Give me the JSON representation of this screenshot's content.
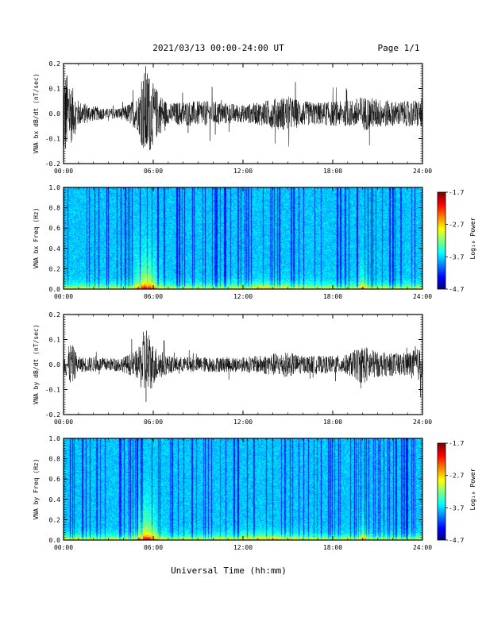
{
  "header": {
    "date_range": "2021/03/13  00:00-24:00 UT",
    "page": "Page 1/1"
  },
  "x_axis": {
    "title": "Universal Time (hh:mm)",
    "ticks": [
      "00:00",
      "06:00",
      "12:00",
      "18:00",
      "24:00"
    ]
  },
  "chart_data": [
    {
      "type": "line",
      "ylabel": "VNA bx dB/dt (nT/sec)",
      "xlim": [
        0,
        24
      ],
      "ylim": [
        -0.2,
        0.2
      ],
      "yticks": [
        "0.2",
        "0.1",
        "0.0",
        "-0.1",
        "-0.2"
      ],
      "envelope": {
        "hours": [
          0,
          0.5,
          1,
          2,
          3,
          4,
          5,
          5.5,
          6,
          7,
          8,
          10,
          12,
          13,
          14,
          15,
          16,
          17,
          18,
          19,
          20,
          21,
          22,
          23,
          24
        ],
        "amplitude": [
          0.2,
          0.12,
          0.05,
          0.03,
          0.02,
          0.025,
          0.07,
          0.2,
          0.12,
          0.04,
          0.05,
          0.05,
          0.035,
          0.045,
          0.06,
          0.07,
          0.05,
          0.045,
          0.05,
          0.05,
          0.07,
          0.06,
          0.05,
          0.05,
          0.06
        ]
      }
    },
    {
      "type": "heatmap",
      "ylabel": "VNA bx Freq (Hz)",
      "xlim": [
        0,
        24
      ],
      "ylim": [
        0,
        1.0
      ],
      "yticks": [
        "1.0",
        "0.8",
        "0.6",
        "0.4",
        "0.2",
        "0.0"
      ],
      "colorbar": {
        "label": "Log₁₀ Power",
        "ticks": [
          "-1.7",
          "-2.7",
          "-3.7",
          "-4.7"
        ],
        "range": [
          -4.7,
          -1.7
        ]
      }
    },
    {
      "type": "line",
      "ylabel": "VNA by dB/dt (nT/sec)",
      "xlim": [
        0,
        24
      ],
      "ylim": [
        -0.2,
        0.2
      ],
      "yticks": [
        "0.2",
        "0.1",
        "0.0",
        "-0.1",
        "-0.2"
      ],
      "envelope": {
        "hours": [
          0,
          0.5,
          1,
          2,
          3,
          4,
          5,
          5.5,
          6,
          7,
          8,
          10,
          12,
          13,
          14,
          15,
          16,
          17,
          18,
          19,
          20,
          21,
          22,
          23,
          24
        ],
        "amplitude": [
          0.03,
          0.09,
          0.03,
          0.03,
          0.025,
          0.03,
          0.06,
          0.17,
          0.08,
          0.035,
          0.03,
          0.03,
          0.03,
          0.035,
          0.045,
          0.05,
          0.035,
          0.035,
          0.035,
          0.04,
          0.08,
          0.05,
          0.045,
          0.05,
          0.07
        ]
      }
    },
    {
      "type": "heatmap",
      "ylabel": "VNA by Freq (Hz)",
      "xlim": [
        0,
        24
      ],
      "ylim": [
        0,
        1.0
      ],
      "yticks": [
        "1.0",
        "0.8",
        "0.6",
        "0.4",
        "0.2",
        "0.0"
      ],
      "colorbar": {
        "label": "Log₁₀ Power",
        "ticks": [
          "-1.7",
          "-2.7",
          "-3.7",
          "-4.7"
        ],
        "range": [
          -4.7,
          -1.7
        ]
      }
    }
  ]
}
